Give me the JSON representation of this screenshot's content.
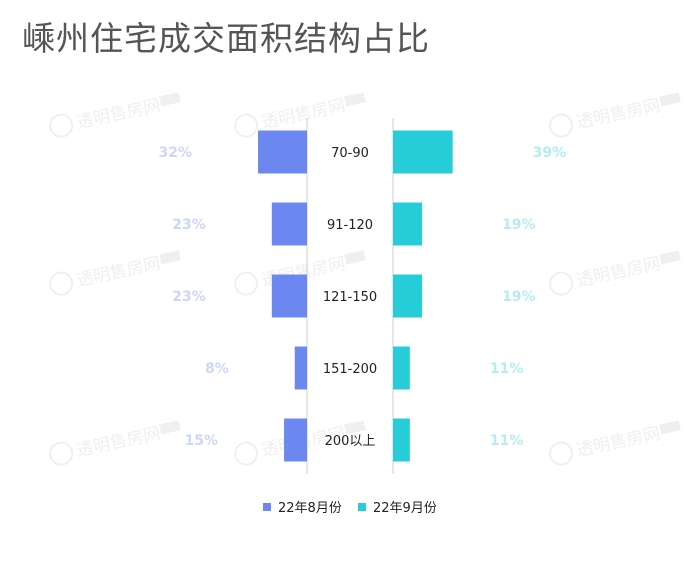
{
  "title": "嵊州住宅成交面积结构占比",
  "watermark": {
    "text": "透明售房网",
    "badge": "",
    "sub": ""
  },
  "colors": {
    "series1": "#6C88F0",
    "series2": "#26CCD8",
    "axis": "#cccccc",
    "label1": "#cdd6f8",
    "label2": "#b6ecf1"
  },
  "chart_data": {
    "type": "bar",
    "orientation": "horizontal-butterfly",
    "categories": [
      "70-90",
      "91-120",
      "121-150",
      "151-200",
      "200以上"
    ],
    "series": [
      {
        "name": "22年8月份",
        "values": [
          32,
          23,
          23,
          8,
          15
        ],
        "labels": [
          "32%",
          "23%",
          "23%",
          "8%",
          "15%"
        ]
      },
      {
        "name": "22年9月份",
        "values": [
          39,
          19,
          19,
          11,
          11
        ],
        "labels": [
          "39%",
          "19%",
          "19%",
          "11%",
          "11%"
        ]
      }
    ],
    "unit": "%",
    "legend_position": "bottom-center",
    "grid": false
  }
}
